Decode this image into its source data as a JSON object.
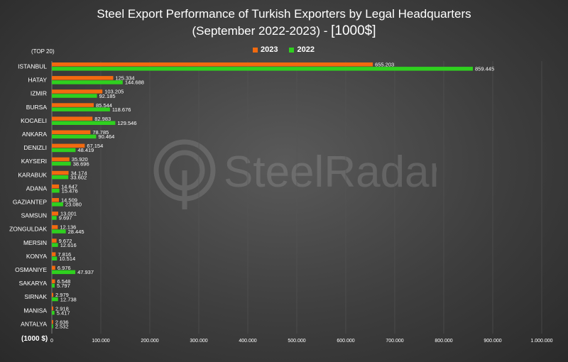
{
  "title_main": "Steel Export Performance of Turkish Exporters by Legal Headquarters",
  "title_sub": "(September 2022-2023) - ",
  "title_unit": "[1000$]",
  "top_label": "(TOP 20)",
  "unit_label": "(1000 $)",
  "watermark_text": "SteelRadar",
  "colors": {
    "series_2023": "#f26a0f",
    "series_2022": "#2fd01f",
    "background": "#3e3e3e",
    "grid": "#555555"
  },
  "chart_data": {
    "type": "bar",
    "orientation": "horizontal",
    "title": "Steel Export Performance of Turkish Exporters by Legal Headquarters (September 2022-2023) - [1000$]",
    "categories": [
      "ISTANBUL",
      "HATAY",
      "IZMIR",
      "BURSA",
      "KOCAELI",
      "ANKARA",
      "DENIZLI",
      "KAYSERI",
      "KARABUK",
      "ADANA",
      "GAZIANTEP",
      "SAMSUN",
      "ZONGULDAK",
      "MERSIN",
      "KONYA",
      "OSMANIYE",
      "SAKARYA",
      "SIRNAK",
      "MANISA",
      "ANTALYA"
    ],
    "series": [
      {
        "name": "2023",
        "values": [
          655.203,
          125.334,
          103.205,
          85.544,
          82.983,
          78.785,
          67.154,
          35.92,
          34.174,
          14.647,
          14.509,
          13.001,
          12.136,
          9.672,
          7.816,
          6.976,
          6.548,
          2.979,
          2.918,
          2.636
        ],
        "labels": [
          "655.203",
          "125.334",
          "103.205",
          "85.544",
          "82.983",
          "78.785",
          "67.154",
          "35.920",
          "34.174",
          "14.647",
          "14.509",
          "13.001",
          "12.136",
          "9.672",
          "7.816",
          "6.976",
          "6.548",
          "2.979",
          "2.918",
          "2.636"
        ]
      },
      {
        "name": "2022",
        "values": [
          859.445,
          144.688,
          92.185,
          118.676,
          129.546,
          90.464,
          48.419,
          38.696,
          33.602,
          15.476,
          23.08,
          9.697,
          28.445,
          12.616,
          10.514,
          47.937,
          5.797,
          12.738,
          5.417,
          2.532
        ],
        "labels": [
          "859.445",
          "144.688",
          "92.185",
          "118.676",
          "129.546",
          "90.464",
          "48.419",
          "38.696",
          "33.602",
          "15.476",
          "23.080",
          "9.697",
          "28.445",
          "12.616",
          "10.514",
          "47.937",
          "5.797",
          "12.738",
          "5.417",
          "2.532"
        ]
      }
    ],
    "xlim": [
      0,
      1000
    ],
    "xticks": [
      0,
      100,
      200,
      300,
      400,
      500,
      600,
      700,
      800,
      900,
      1000
    ],
    "xtick_labels": [
      "0",
      "100.000",
      "200.000",
      "300.000",
      "400.000",
      "500.000",
      "600.000",
      "700.000",
      "800.000",
      "900.000",
      "1.000.000"
    ],
    "legend_position": "top-center",
    "grid": true
  }
}
